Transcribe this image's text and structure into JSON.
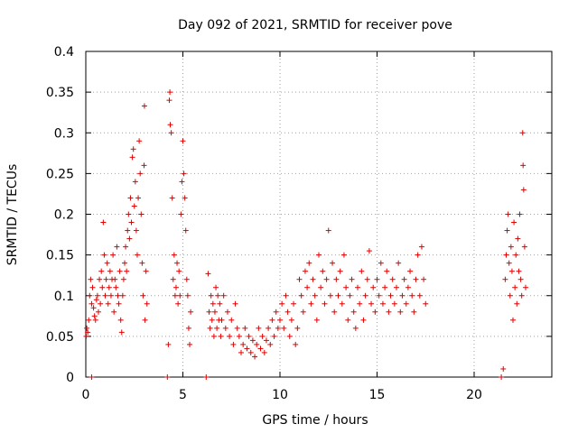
{
  "chart_data": {
    "type": "scatter",
    "title": "Day 092 of 2021, SRMTID for receiver pove",
    "xlabel": "GPS time / hours",
    "ylabel": "SRMTID / TECUs",
    "xlim": [
      0,
      24
    ],
    "ylim": [
      0,
      0.4
    ],
    "grid": true,
    "marker": "+",
    "color": "#e00000",
    "x_ticks": [
      "0",
      "5",
      "10",
      "15",
      "20"
    ],
    "y_ticks": [
      "0",
      "0.05",
      "0.1",
      "0.15",
      "0.2",
      "0.25",
      "0.3",
      "0.35",
      "0.4"
    ],
    "x_tick_values": [
      0,
      5,
      10,
      15,
      20
    ],
    "y_tick_values": [
      0,
      0.05,
      0.1,
      0.15,
      0.2,
      0.25,
      0.3,
      0.35,
      0.4
    ],
    "series": [
      {
        "name": "SRMTID",
        "points": [
          [
            0.02,
            0.05
          ],
          [
            0.05,
            0.06
          ],
          [
            0.1,
            0.055
          ],
          [
            0.15,
            0.07
          ],
          [
            0.2,
            0.1
          ],
          [
            0.25,
            0.12
          ],
          [
            0.3,
            0.09
          ],
          [
            0.35,
            0.11
          ],
          [
            0.4,
            0.085
          ],
          [
            0.45,
            0.075
          ],
          [
            0.5,
            0.07
          ],
          [
            0.55,
            0.095
          ],
          [
            0.6,
            0.1
          ],
          [
            0.65,
            0.08
          ],
          [
            0.7,
            0.12
          ],
          [
            0.75,
            0.09
          ],
          [
            0.8,
            0.13
          ],
          [
            0.85,
            0.11
          ],
          [
            0.9,
            0.19
          ],
          [
            0.95,
            0.15
          ],
          [
            1.0,
            0.1
          ],
          [
            1.05,
            0.12
          ],
          [
            1.1,
            0.14
          ],
          [
            1.15,
            0.09
          ],
          [
            1.2,
            0.11
          ],
          [
            1.25,
            0.13
          ],
          [
            1.3,
            0.1
          ],
          [
            1.35,
            0.12
          ],
          [
            1.4,
            0.15
          ],
          [
            1.45,
            0.08
          ],
          [
            1.5,
            0.12
          ],
          [
            1.55,
            0.11
          ],
          [
            1.6,
            0.16
          ],
          [
            1.65,
            0.1
          ],
          [
            1.7,
            0.09
          ],
          [
            1.75,
            0.13
          ],
          [
            1.8,
            0.07
          ],
          [
            1.85,
            0.055
          ],
          [
            1.9,
            0.1
          ],
          [
            1.95,
            0.12
          ],
          [
            2.0,
            0.14
          ],
          [
            2.05,
            0.16
          ],
          [
            2.1,
            0.13
          ],
          [
            2.15,
            0.18
          ],
          [
            2.2,
            0.2
          ],
          [
            2.25,
            0.17
          ],
          [
            2.3,
            0.22
          ],
          [
            2.35,
            0.19
          ],
          [
            2.4,
            0.27
          ],
          [
            2.45,
            0.28
          ],
          [
            2.5,
            0.21
          ],
          [
            2.55,
            0.24
          ],
          [
            2.6,
            0.18
          ],
          [
            2.65,
            0.15
          ],
          [
            2.7,
            0.22
          ],
          [
            2.75,
            0.29
          ],
          [
            2.8,
            0.25
          ],
          [
            2.85,
            0.2
          ],
          [
            2.9,
            0.14
          ],
          [
            2.95,
            0.1
          ],
          [
            3.0,
            0.26
          ],
          [
            3.02,
            0.333
          ],
          [
            3.05,
            0.07
          ],
          [
            3.1,
            0.13
          ],
          [
            3.15,
            0.09
          ],
          [
            0.3,
            0.0
          ],
          [
            4.2,
            0.0
          ],
          [
            6.2,
            0.0
          ],
          [
            21.4,
            0.0
          ],
          [
            21.5,
            0.01
          ],
          [
            4.25,
            0.04
          ],
          [
            4.3,
            0.34
          ],
          [
            4.33,
            0.35
          ],
          [
            4.35,
            0.31
          ],
          [
            4.4,
            0.3
          ],
          [
            4.45,
            0.22
          ],
          [
            4.5,
            0.12
          ],
          [
            4.55,
            0.15
          ],
          [
            4.6,
            0.1
          ],
          [
            4.65,
            0.11
          ],
          [
            4.7,
            0.14
          ],
          [
            4.75,
            0.09
          ],
          [
            4.8,
            0.13
          ],
          [
            4.85,
            0.1
          ],
          [
            4.9,
            0.2
          ],
          [
            4.95,
            0.24
          ],
          [
            5.0,
            0.29
          ],
          [
            5.05,
            0.25
          ],
          [
            5.1,
            0.22
          ],
          [
            5.15,
            0.18
          ],
          [
            5.2,
            0.12
          ],
          [
            5.25,
            0.1
          ],
          [
            5.3,
            0.06
          ],
          [
            5.35,
            0.04
          ],
          [
            5.4,
            0.08
          ],
          [
            6.3,
            0.127
          ],
          [
            6.35,
            0.08
          ],
          [
            6.4,
            0.06
          ],
          [
            6.45,
            0.1
          ],
          [
            6.5,
            0.07
          ],
          [
            6.55,
            0.09
          ],
          [
            6.6,
            0.05
          ],
          [
            6.65,
            0.08
          ],
          [
            6.7,
            0.11
          ],
          [
            6.75,
            0.06
          ],
          [
            6.8,
            0.1
          ],
          [
            6.85,
            0.07
          ],
          [
            6.9,
            0.09
          ],
          [
            6.95,
            0.05
          ],
          [
            7.0,
            0.07
          ],
          [
            7.1,
            0.1
          ],
          [
            7.2,
            0.06
          ],
          [
            7.3,
            0.08
          ],
          [
            7.4,
            0.05
          ],
          [
            7.5,
            0.07
          ],
          [
            7.6,
            0.04
          ],
          [
            7.7,
            0.09
          ],
          [
            7.8,
            0.06
          ],
          [
            7.9,
            0.05
          ],
          [
            8.0,
            0.03
          ],
          [
            8.1,
            0.04
          ],
          [
            8.2,
            0.06
          ],
          [
            8.3,
            0.035
          ],
          [
            8.4,
            0.05
          ],
          [
            8.5,
            0.03
          ],
          [
            8.6,
            0.045
          ],
          [
            8.7,
            0.025
          ],
          [
            8.8,
            0.04
          ],
          [
            8.9,
            0.06
          ],
          [
            9.0,
            0.035
          ],
          [
            9.1,
            0.05
          ],
          [
            9.2,
            0.03
          ],
          [
            9.3,
            0.045
          ],
          [
            9.4,
            0.06
          ],
          [
            9.5,
            0.04
          ],
          [
            9.6,
            0.07
          ],
          [
            9.7,
            0.05
          ],
          [
            9.8,
            0.08
          ],
          [
            9.9,
            0.06
          ],
          [
            10.0,
            0.07
          ],
          [
            10.1,
            0.09
          ],
          [
            10.2,
            0.06
          ],
          [
            10.3,
            0.1
          ],
          [
            10.4,
            0.08
          ],
          [
            10.5,
            0.05
          ],
          [
            10.6,
            0.07
          ],
          [
            10.7,
            0.09
          ],
          [
            10.8,
            0.04
          ],
          [
            10.9,
            0.06
          ],
          [
            11.0,
            0.12
          ],
          [
            11.1,
            0.1
          ],
          [
            11.2,
            0.08
          ],
          [
            11.3,
            0.13
          ],
          [
            11.4,
            0.11
          ],
          [
            11.5,
            0.14
          ],
          [
            11.6,
            0.09
          ],
          [
            11.7,
            0.12
          ],
          [
            11.8,
            0.1
          ],
          [
            11.9,
            0.07
          ],
          [
            12.0,
            0.15
          ],
          [
            12.1,
            0.11
          ],
          [
            12.2,
            0.13
          ],
          [
            12.3,
            0.09
          ],
          [
            12.4,
            0.12
          ],
          [
            12.5,
            0.18
          ],
          [
            12.6,
            0.1
          ],
          [
            12.7,
            0.14
          ],
          [
            12.8,
            0.08
          ],
          [
            12.9,
            0.12
          ],
          [
            13.0,
            0.1
          ],
          [
            13.1,
            0.13
          ],
          [
            13.2,
            0.09
          ],
          [
            13.3,
            0.15
          ],
          [
            13.4,
            0.11
          ],
          [
            13.5,
            0.07
          ],
          [
            13.6,
            0.1
          ],
          [
            13.7,
            0.12
          ],
          [
            13.8,
            0.08
          ],
          [
            13.9,
            0.06
          ],
          [
            14.0,
            0.11
          ],
          [
            14.1,
            0.09
          ],
          [
            14.2,
            0.13
          ],
          [
            14.3,
            0.07
          ],
          [
            14.4,
            0.1
          ],
          [
            14.5,
            0.12
          ],
          [
            14.6,
            0.155
          ],
          [
            14.7,
            0.09
          ],
          [
            14.8,
            0.11
          ],
          [
            14.9,
            0.08
          ],
          [
            15.0,
            0.12
          ],
          [
            15.1,
            0.1
          ],
          [
            15.2,
            0.14
          ],
          [
            15.3,
            0.09
          ],
          [
            15.4,
            0.11
          ],
          [
            15.5,
            0.13
          ],
          [
            15.6,
            0.08
          ],
          [
            15.7,
            0.1
          ],
          [
            15.8,
            0.12
          ],
          [
            15.9,
            0.09
          ],
          [
            16.0,
            0.11
          ],
          [
            16.1,
            0.14
          ],
          [
            16.2,
            0.08
          ],
          [
            16.3,
            0.1
          ],
          [
            16.4,
            0.12
          ],
          [
            16.5,
            0.09
          ],
          [
            16.6,
            0.11
          ],
          [
            16.7,
            0.13
          ],
          [
            16.8,
            0.1
          ],
          [
            16.9,
            0.08
          ],
          [
            17.0,
            0.12
          ],
          [
            17.1,
            0.15
          ],
          [
            17.2,
            0.1
          ],
          [
            17.3,
            0.16
          ],
          [
            17.4,
            0.12
          ],
          [
            17.5,
            0.09
          ],
          [
            21.6,
            0.12
          ],
          [
            21.65,
            0.15
          ],
          [
            21.7,
            0.18
          ],
          [
            21.75,
            0.2
          ],
          [
            21.8,
            0.14
          ],
          [
            21.85,
            0.1
          ],
          [
            21.9,
            0.16
          ],
          [
            21.95,
            0.13
          ],
          [
            22.0,
            0.07
          ],
          [
            22.05,
            0.19
          ],
          [
            22.1,
            0.11
          ],
          [
            22.15,
            0.15
          ],
          [
            22.2,
            0.09
          ],
          [
            22.25,
            0.17
          ],
          [
            22.3,
            0.13
          ],
          [
            22.35,
            0.2
          ],
          [
            22.4,
            0.12
          ],
          [
            22.45,
            0.1
          ],
          [
            22.5,
            0.3
          ],
          [
            22.52,
            0.26
          ],
          [
            22.55,
            0.23
          ],
          [
            22.6,
            0.16
          ],
          [
            22.65,
            0.11
          ]
        ]
      }
    ]
  }
}
